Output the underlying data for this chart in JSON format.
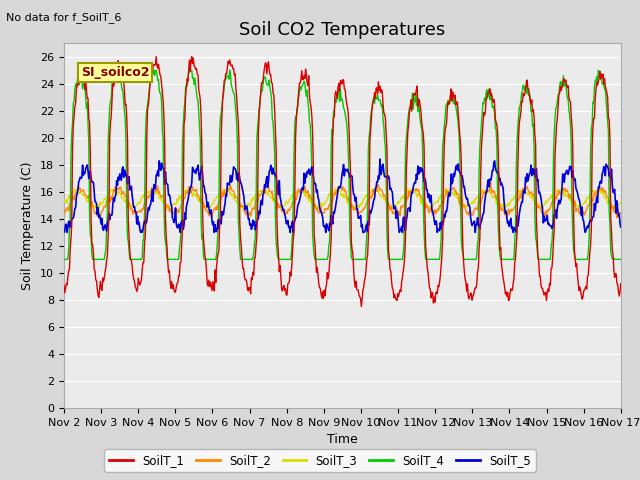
{
  "title": "Soil CO2 Temperatures",
  "xlabel": "Time",
  "ylabel": "Soil Temperature (C)",
  "note": "No data for f_SoilT_6",
  "legend_label": "SI_soilco2",
  "ylim": [
    0,
    27
  ],
  "yticks": [
    0,
    2,
    4,
    6,
    8,
    10,
    12,
    14,
    16,
    18,
    20,
    22,
    24,
    26
  ],
  "xtick_labels": [
    "Nov 2",
    "Nov 3",
    "Nov 4",
    "Nov 5",
    "Nov 6",
    "Nov 7",
    "Nov 8",
    "Nov 9",
    "Nov 10",
    "Nov 11",
    "Nov 12",
    "Nov 13",
    "Nov 14",
    "Nov 15",
    "Nov 16",
    "Nov 17"
  ],
  "series_colors": {
    "SoilT_1": "#dd0000",
    "SoilT_2": "#ff8800",
    "SoilT_3": "#dddd00",
    "SoilT_4": "#00cc00",
    "SoilT_5": "#0000dd"
  },
  "bg_color": "#d8d8d8",
  "plot_bg": "#ebebeb",
  "title_fontsize": 13,
  "axis_fontsize": 9,
  "tick_fontsize": 8,
  "legend_box_color": "#ffff99",
  "legend_box_edge": "#999900"
}
